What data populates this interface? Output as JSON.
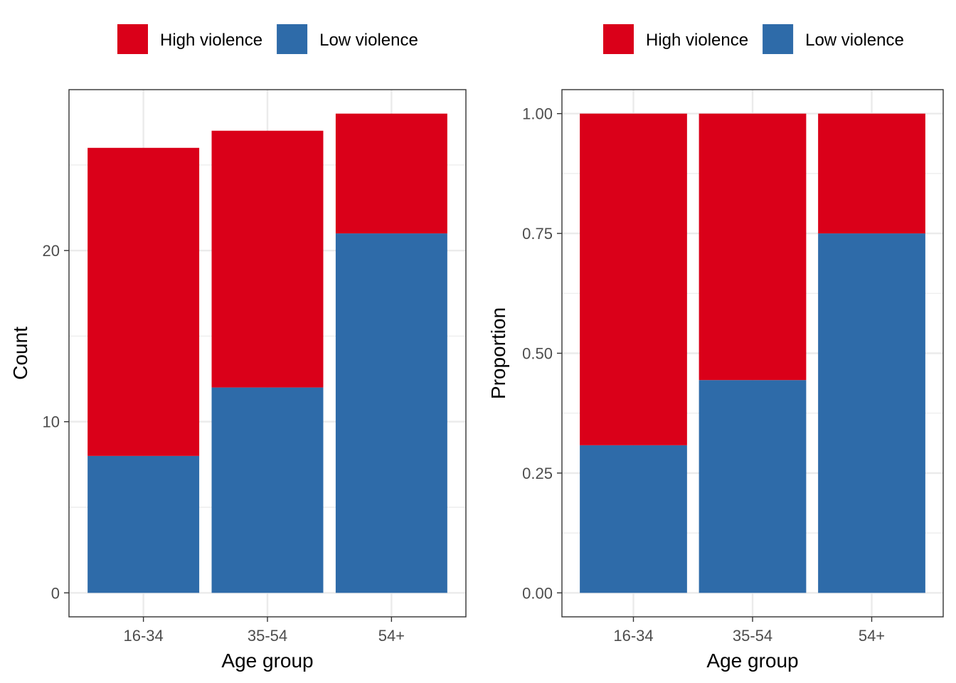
{
  "colors": {
    "high": "#DA0019",
    "low": "#2E6BA9",
    "grid": "#EBEBEB",
    "frame": "#333333",
    "tick": "#4D4D4D"
  },
  "chart_data": [
    {
      "type": "bar",
      "stacked": true,
      "title": "",
      "xlabel": "Age group",
      "ylabel": "Count",
      "categories": [
        "16-34",
        "35-54",
        "54+"
      ],
      "series": [
        {
          "name": "Low violence",
          "values": [
            8,
            12,
            21
          ]
        },
        {
          "name": "High violence",
          "values": [
            18,
            15,
            7
          ]
        }
      ],
      "ylim": [
        -1.4,
        29.4
      ],
      "yticks": [
        0,
        10,
        20
      ],
      "yminor": [
        5,
        15,
        25
      ],
      "ytick_labels": [
        "0",
        "10",
        "20"
      ],
      "legend": {
        "position": "top",
        "entries": [
          "High violence",
          "Low violence"
        ]
      },
      "grid": true
    },
    {
      "type": "bar",
      "stacked": true,
      "title": "",
      "xlabel": "Age group",
      "ylabel": "Proportion",
      "categories": [
        "16-34",
        "35-54",
        "54+"
      ],
      "series": [
        {
          "name": "Low violence",
          "values": [
            0.308,
            0.444,
            0.75
          ]
        },
        {
          "name": "High violence",
          "values": [
            0.692,
            0.556,
            0.25
          ]
        }
      ],
      "ylim": [
        -0.05,
        1.05
      ],
      "yticks": [
        0,
        0.25,
        0.5,
        0.75,
        1.0
      ],
      "yminor": [
        0.125,
        0.375,
        0.625,
        0.875
      ],
      "ytick_labels": [
        "0.00",
        "0.25",
        "0.50",
        "0.75",
        "1.00"
      ],
      "legend": {
        "position": "top",
        "entries": [
          "High violence",
          "Low violence"
        ]
      },
      "grid": true
    }
  ]
}
